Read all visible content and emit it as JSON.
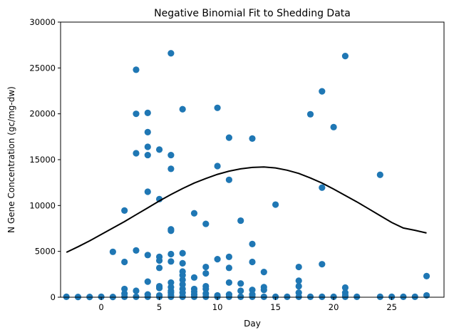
{
  "chart_data": {
    "type": "scatter",
    "title": "Negative Binomial Fit to Shedding Data",
    "xlabel": "Day",
    "ylabel": "N Gene Concentration (gc/mg-dw)",
    "xlim": [
      -3.5,
      29.5
    ],
    "ylim": [
      0,
      30000
    ],
    "xticks": [
      0,
      5,
      10,
      15,
      20,
      25
    ],
    "yticks": [
      0,
      5000,
      10000,
      15000,
      20000,
      25000,
      30000
    ],
    "grid": false,
    "series": [
      {
        "type": "scatter",
        "color": "#1f77b4",
        "points": [
          [
            -3,
            50
          ],
          [
            -2,
            30
          ],
          [
            -1,
            30
          ],
          [
            0,
            50
          ],
          [
            1,
            30
          ],
          [
            1,
            4950
          ],
          [
            2,
            9450
          ],
          [
            2,
            3850
          ],
          [
            2,
            900
          ],
          [
            2,
            400
          ],
          [
            2,
            50
          ],
          [
            3,
            24800
          ],
          [
            3,
            20000
          ],
          [
            3,
            15700
          ],
          [
            3,
            5100
          ],
          [
            3,
            700
          ],
          [
            3,
            50
          ],
          [
            4,
            20100
          ],
          [
            4,
            18000
          ],
          [
            4,
            16400
          ],
          [
            4,
            15500
          ],
          [
            4,
            11500
          ],
          [
            4,
            4600
          ],
          [
            4,
            1700
          ],
          [
            4,
            300
          ],
          [
            4,
            50
          ],
          [
            5,
            16100
          ],
          [
            5,
            10700
          ],
          [
            5,
            4400
          ],
          [
            5,
            4000
          ],
          [
            5,
            3200
          ],
          [
            5,
            1200
          ],
          [
            5,
            1000
          ],
          [
            5,
            200
          ],
          [
            5,
            50
          ],
          [
            6,
            26600
          ],
          [
            6,
            15500
          ],
          [
            6,
            14000
          ],
          [
            6,
            7400
          ],
          [
            6,
            7250
          ],
          [
            6,
            4700
          ],
          [
            6,
            3900
          ],
          [
            6,
            1600
          ],
          [
            6,
            1100
          ],
          [
            6,
            700
          ],
          [
            6,
            500
          ],
          [
            6,
            200
          ],
          [
            6,
            50
          ],
          [
            7,
            20500
          ],
          [
            7,
            4800
          ],
          [
            7,
            3700
          ],
          [
            7,
            2800
          ],
          [
            7,
            2400
          ],
          [
            7,
            1900
          ],
          [
            7,
            1400
          ],
          [
            7,
            900
          ],
          [
            7,
            500
          ],
          [
            7,
            100
          ],
          [
            7,
            50
          ],
          [
            8,
            9150
          ],
          [
            8,
            2150
          ],
          [
            8,
            900
          ],
          [
            8,
            600
          ],
          [
            8,
            300
          ],
          [
            8,
            50
          ],
          [
            9,
            8000
          ],
          [
            9,
            3300
          ],
          [
            9,
            2600
          ],
          [
            9,
            1200
          ],
          [
            9,
            900
          ],
          [
            9,
            400
          ],
          [
            9,
            50
          ],
          [
            10,
            20650
          ],
          [
            10,
            14300
          ],
          [
            10,
            4150
          ],
          [
            10,
            200
          ],
          [
            10,
            50
          ],
          [
            11,
            17400
          ],
          [
            11,
            12800
          ],
          [
            11,
            4400
          ],
          [
            11,
            3200
          ],
          [
            11,
            1600
          ],
          [
            11,
            300
          ],
          [
            11,
            50
          ],
          [
            12,
            8350
          ],
          [
            12,
            1500
          ],
          [
            12,
            700
          ],
          [
            12,
            50
          ],
          [
            13,
            17300
          ],
          [
            13,
            5800
          ],
          [
            13,
            3850
          ],
          [
            13,
            800
          ],
          [
            13,
            300
          ],
          [
            13,
            50
          ],
          [
            14,
            2750
          ],
          [
            14,
            1100
          ],
          [
            14,
            800
          ],
          [
            14,
            50
          ],
          [
            15,
            10100
          ],
          [
            15,
            50
          ],
          [
            16,
            50
          ],
          [
            17,
            3300
          ],
          [
            17,
            1800
          ],
          [
            17,
            1200
          ],
          [
            17,
            500
          ],
          [
            17,
            50
          ],
          [
            18,
            19950
          ],
          [
            18,
            50
          ],
          [
            19,
            22450
          ],
          [
            19,
            11950
          ],
          [
            19,
            3600
          ],
          [
            19,
            50
          ],
          [
            20,
            18550
          ],
          [
            20,
            50
          ],
          [
            21,
            26300
          ],
          [
            21,
            1050
          ],
          [
            21,
            500
          ],
          [
            21,
            200
          ],
          [
            21,
            50
          ],
          [
            22,
            50
          ],
          [
            24,
            13350
          ],
          [
            24,
            50
          ],
          [
            25,
            50
          ],
          [
            26,
            50
          ],
          [
            27,
            50
          ],
          [
            28,
            2300
          ],
          [
            28,
            200
          ]
        ]
      },
      {
        "type": "line",
        "color": "#000000",
        "x": [
          -3,
          -2,
          -1,
          0,
          1,
          2,
          3,
          4,
          5,
          6,
          7,
          8,
          9,
          10,
          11,
          12,
          13,
          14,
          15,
          16,
          17,
          18,
          19,
          20,
          21,
          22,
          23,
          24,
          25,
          26,
          27,
          28
        ],
        "y": [
          4900,
          5500,
          6150,
          6850,
          7550,
          8250,
          9000,
          9750,
          10500,
          11200,
          11850,
          12450,
          12950,
          13400,
          13750,
          14000,
          14150,
          14200,
          14100,
          13850,
          13500,
          13000,
          12450,
          11800,
          11100,
          10400,
          9650,
          8900,
          8150,
          7550,
          7300,
          7000
        ]
      }
    ]
  }
}
